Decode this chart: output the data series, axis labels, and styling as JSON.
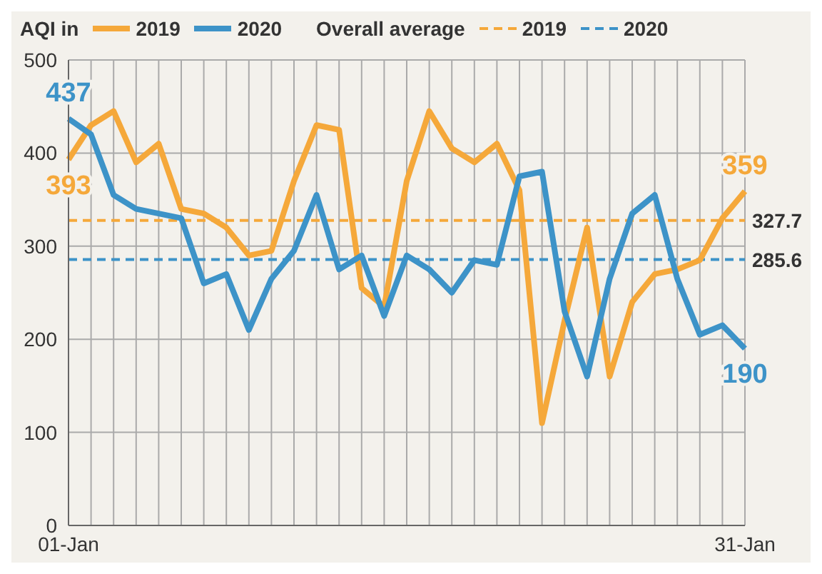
{
  "chart_data": {
    "type": "line",
    "legend_title": "AQI in",
    "annotations": [
      "Overall average"
    ],
    "categories": [
      "01-Jan",
      null,
      null,
      null,
      null,
      null,
      null,
      null,
      null,
      null,
      null,
      null,
      null,
      null,
      null,
      null,
      null,
      null,
      null,
      null,
      null,
      null,
      null,
      null,
      null,
      null,
      null,
      null,
      null,
      null,
      "31-Jan"
    ],
    "series": [
      {
        "name": "2019",
        "color": "#f5a83a",
        "values": [
          393,
          430,
          445,
          390,
          410,
          340,
          335,
          320,
          290,
          295,
          370,
          430,
          425,
          255,
          235,
          370,
          445,
          405,
          390,
          410,
          360,
          110,
          220,
          320,
          160,
          240,
          270,
          275,
          285,
          330,
          359
        ],
        "value_labels": [
          "393",
          null,
          null,
          null,
          null,
          null,
          null,
          null,
          null,
          null,
          null,
          null,
          null,
          null,
          null,
          null,
          null,
          null,
          null,
          null,
          null,
          null,
          null,
          null,
          null,
          null,
          null,
          null,
          null,
          null,
          "359"
        ]
      },
      {
        "name": "2020",
        "color": "#3d93c8",
        "values": [
          437,
          420,
          355,
          340,
          335,
          330,
          260,
          270,
          210,
          265,
          295,
          355,
          275,
          290,
          225,
          290,
          275,
          250,
          285,
          280,
          375,
          380,
          230,
          160,
          265,
          335,
          355,
          265,
          205,
          215,
          190
        ],
        "value_labels": [
          "437",
          null,
          null,
          null,
          null,
          null,
          null,
          null,
          null,
          null,
          null,
          null,
          null,
          null,
          null,
          null,
          null,
          null,
          null,
          null,
          null,
          null,
          null,
          null,
          null,
          null,
          null,
          null,
          null,
          null,
          "190"
        ]
      }
    ],
    "ref_lines": [
      {
        "axis": "y",
        "value": 327.7,
        "label": "327.7",
        "color": "#f5a83a",
        "line_style": "dashed"
      },
      {
        "axis": "y",
        "value": 285.6,
        "label": "285.6",
        "color": "#3d93c8",
        "line_style": "dashed"
      }
    ],
    "ylim": [
      0,
      500
    ],
    "yticks": [
      0,
      100,
      200,
      300,
      400,
      500
    ],
    "grid": true,
    "legend": "top",
    "marker": "none",
    "line_style": "solid"
  }
}
